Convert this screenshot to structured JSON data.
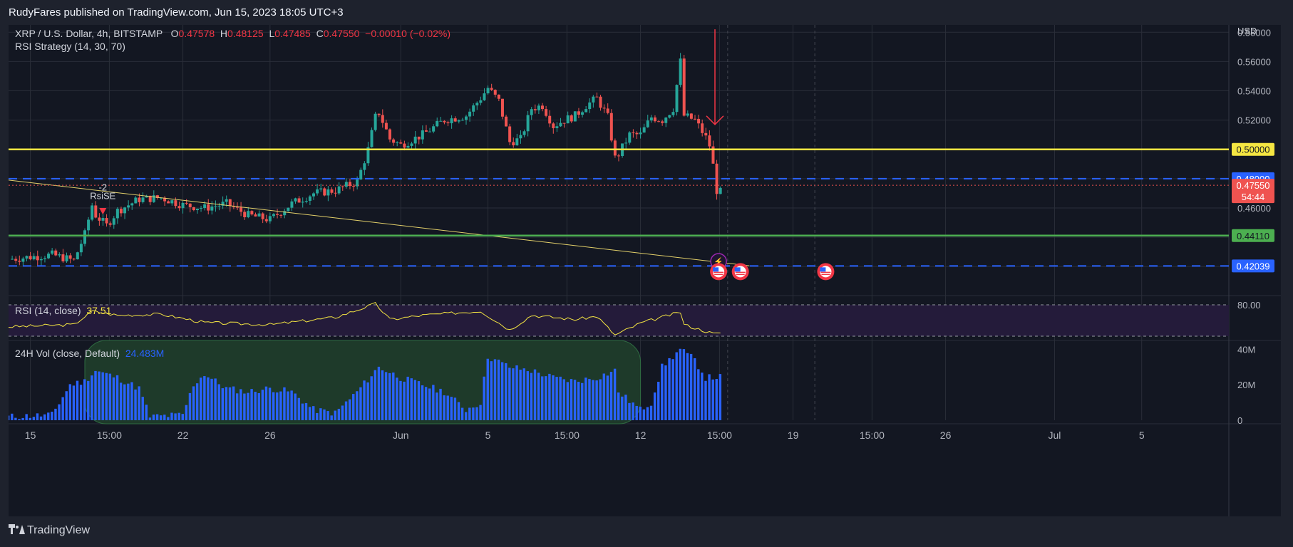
{
  "header": {
    "publisher_line": "RudyFares published on TradingView.com, Jun 15, 2023 18:05 UTC+3"
  },
  "legend": {
    "symbol": "XRP / U.S. Dollar, 4h, BITSTAMP",
    "open_label": "O",
    "open": "0.47578",
    "high_label": "H",
    "high": "0.48125",
    "low_label": "L",
    "low": "0.47485",
    "close_label": "C",
    "close": "0.47550",
    "change": "−0.00010 (−0.02%)",
    "strategy": "RSI Strategy (14, 30, 70)",
    "rsi_title": "RSI (14, close)",
    "rsi_value": "37.51",
    "vol_title": "24H Vol (close, Default)",
    "vol_value": "24.483M"
  },
  "footer": {
    "brand": "TradingView"
  },
  "colors": {
    "background": "#131722",
    "up": "#26a69a",
    "down": "#ef5350",
    "yellow_level": "#f5e642",
    "green_level": "#4caf50",
    "blue_level": "#2962ff",
    "volume": "#2962ff",
    "rsi_line": "#f5e642"
  },
  "chart_data": [
    {
      "type": "candlestick",
      "panel": "price",
      "currency": "USD",
      "ylim": [
        0.405,
        0.585
      ],
      "price_ticks": [
        0.58,
        0.56,
        0.54,
        0.52,
        0.46
      ],
      "price_tick_labels": [
        "0.58000",
        "0.56000",
        "0.54000",
        "0.52000",
        "0.46000"
      ],
      "x_ticks": [
        {
          "date": "2023-05-15",
          "label": "15"
        },
        {
          "date": "2023-05-18 15:00",
          "label": "15:00"
        },
        {
          "date": "2023-05-22",
          "label": "22"
        },
        {
          "date": "2023-05-26",
          "label": "26"
        },
        {
          "date": "2023-06-01",
          "label": "Jun"
        },
        {
          "date": "2023-06-05",
          "label": "5"
        },
        {
          "date": "2023-06-08 15:00",
          "label": "15:00"
        },
        {
          "date": "2023-06-12",
          "label": "12"
        },
        {
          "date": "2023-06-15 15:00",
          "label": "15:00"
        },
        {
          "date": "2023-06-19",
          "label": "19"
        },
        {
          "date": "2023-06-22 15:00",
          "label": "15:00"
        },
        {
          "date": "2023-06-26",
          "label": "26"
        },
        {
          "date": "2023-07-01",
          "label": "Jul"
        },
        {
          "date": "2023-07-05",
          "label": "5"
        }
      ],
      "x_range": [
        "2023-05-14",
        "2023-07-09"
      ],
      "close_path": [
        [
          "2023-05-14",
          0.425
        ],
        [
          "2023-05-16",
          0.428
        ],
        [
          "2023-05-17",
          0.424
        ],
        [
          "2023-05-17 12:00",
          0.442
        ],
        [
          "2023-05-17 20:00",
          0.462
        ],
        [
          "2023-05-18",
          0.455
        ],
        [
          "2023-05-18 12:00",
          0.448
        ],
        [
          "2023-05-19",
          0.458
        ],
        [
          "2023-05-20",
          0.466
        ],
        [
          "2023-05-21",
          0.467
        ],
        [
          "2023-05-22",
          0.462
        ],
        [
          "2023-05-23",
          0.46
        ],
        [
          "2023-05-24",
          0.463
        ],
        [
          "2023-05-25",
          0.455
        ],
        [
          "2023-05-26",
          0.452
        ],
        [
          "2023-05-27",
          0.463
        ],
        [
          "2023-05-28",
          0.47
        ],
        [
          "2023-05-29",
          0.472
        ],
        [
          "2023-05-30",
          0.478
        ],
        [
          "2023-05-30 12:00",
          0.5
        ],
        [
          "2023-05-30 20:00",
          0.522
        ],
        [
          "2023-05-31",
          0.525
        ],
        [
          "2023-05-31 12:00",
          0.507
        ],
        [
          "2023-06-01",
          0.503
        ],
        [
          "2023-06-02",
          0.51
        ],
        [
          "2023-06-03",
          0.52
        ],
        [
          "2023-06-04",
          0.523
        ],
        [
          "2023-06-04 16:00",
          0.535
        ],
        [
          "2023-06-05",
          0.542
        ],
        [
          "2023-06-05 12:00",
          0.533
        ],
        [
          "2023-06-06",
          0.505
        ],
        [
          "2023-06-06 12:00",
          0.507
        ],
        [
          "2023-06-07",
          0.528
        ],
        [
          "2023-06-07 12:00",
          0.53
        ],
        [
          "2023-06-08",
          0.516
        ],
        [
          "2023-06-08 12:00",
          0.52
        ],
        [
          "2023-06-09",
          0.523
        ],
        [
          "2023-06-09 12:00",
          0.53
        ],
        [
          "2023-06-10",
          0.535
        ],
        [
          "2023-06-10 12:00",
          0.522
        ],
        [
          "2023-06-10 20:00",
          0.494
        ],
        [
          "2023-06-11",
          0.497
        ],
        [
          "2023-06-11 12:00",
          0.51
        ],
        [
          "2023-06-12",
          0.51
        ],
        [
          "2023-06-12 12:00",
          0.522
        ],
        [
          "2023-06-13",
          0.52
        ],
        [
          "2023-06-13 12:00",
          0.528
        ],
        [
          "2023-06-13 20:00",
          0.56
        ],
        [
          "2023-06-14",
          0.523
        ],
        [
          "2023-06-14 12:00",
          0.52
        ],
        [
          "2023-06-15",
          0.508
        ],
        [
          "2023-06-15 06:00",
          0.5
        ],
        [
          "2023-06-15 10:00",
          0.478
        ],
        [
          "2023-06-15 14:00",
          0.466
        ],
        [
          "2023-06-15 18:00",
          0.4755
        ]
      ],
      "levels": [
        {
          "value": 0.5,
          "label": "0.50000",
          "style": "solid",
          "color": "#f5e642"
        },
        {
          "value": 0.48,
          "label": "0.48000",
          "style": "dashed",
          "color": "#2962ff"
        },
        {
          "value": 0.4755,
          "label": "0.47550",
          "sublabel": "54:44",
          "style": "dotted",
          "color": "#ef5350"
        },
        {
          "value": 0.4411,
          "label": "0.44110",
          "style": "solid",
          "color": "#4caf50"
        },
        {
          "value": 0.42039,
          "label": "0.42039",
          "style": "dashed",
          "color": "#2962ff"
        }
      ],
      "trendline": {
        "start": [
          "2023-05-14",
          0.479
        ],
        "end": [
          "2023-06-17",
          0.4205
        ]
      },
      "annotations": [
        {
          "text": "-2",
          "date": "2023-05-18",
          "price": 0.472
        },
        {
          "text": "RsiSE",
          "date": "2023-05-18",
          "price": 0.466
        },
        {
          "type": "arrow-down",
          "date": "2023-06-15 10:00",
          "from": 0.582,
          "to": 0.517
        }
      ]
    },
    {
      "type": "line",
      "panel": "rsi",
      "title": "RSI (14, close)",
      "y_ticks": [
        80
      ],
      "y_tick_labels": [
        "80.00"
      ],
      "bands": [
        70,
        30
      ],
      "current": 37.51,
      "points": [
        [
          "2023-05-14",
          48
        ],
        [
          "2023-05-17",
          52
        ],
        [
          "2023-05-17 20:00",
          78
        ],
        [
          "2023-05-19",
          70
        ],
        [
          "2023-05-21",
          72
        ],
        [
          "2023-05-23",
          56
        ],
        [
          "2023-05-26",
          52
        ],
        [
          "2023-05-29",
          66
        ],
        [
          "2023-05-30 20:00",
          92
        ],
        [
          "2023-05-31 12:00",
          62
        ],
        [
          "2023-06-02",
          70
        ],
        [
          "2023-06-04 16:00",
          78
        ],
        [
          "2023-06-06",
          42
        ],
        [
          "2023-06-07",
          70
        ],
        [
          "2023-06-09",
          62
        ],
        [
          "2023-06-10",
          68
        ],
        [
          "2023-06-10 20:00",
          32
        ],
        [
          "2023-06-12",
          55
        ],
        [
          "2023-06-13 20:00",
          76
        ],
        [
          "2023-06-14",
          52
        ],
        [
          "2023-06-15 10:00",
          34
        ],
        [
          "2023-06-15 18:00",
          37.51
        ]
      ]
    },
    {
      "type": "bar",
      "panel": "volume",
      "title": "24H Vol (close, Default)",
      "y_ticks": [
        0,
        20,
        40
      ],
      "y_tick_labels": [
        "0",
        "20M",
        "40M"
      ],
      "current": "24.483M",
      "unit": "M",
      "profile": [
        [
          "2023-05-14",
          2
        ],
        [
          "2023-05-16",
          3
        ],
        [
          "2023-05-16 20:00",
          20
        ],
        [
          "2023-05-17 12:00",
          22
        ],
        [
          "2023-05-18",
          28
        ],
        [
          "2023-05-19",
          24
        ],
        [
          "2023-05-20",
          18
        ],
        [
          "2023-05-20 12:00",
          2
        ],
        [
          "2023-05-22",
          3
        ],
        [
          "2023-05-22 12:00",
          20
        ],
        [
          "2023-05-23",
          26
        ],
        [
          "2023-05-24",
          18
        ],
        [
          "2023-05-25",
          16
        ],
        [
          "2023-05-26",
          18
        ],
        [
          "2023-05-27",
          16
        ],
        [
          "2023-05-28",
          6
        ],
        [
          "2023-05-29",
          4
        ],
        [
          "2023-05-30",
          16
        ],
        [
          "2023-05-31",
          30
        ],
        [
          "2023-06-01",
          24
        ],
        [
          "2023-06-02",
          20
        ],
        [
          "2023-06-03",
          16
        ],
        [
          "2023-06-04",
          6
        ],
        [
          "2023-06-04 16:00",
          10
        ],
        [
          "2023-06-05",
          36
        ],
        [
          "2023-06-06",
          30
        ],
        [
          "2023-06-07",
          28
        ],
        [
          "2023-06-08",
          24
        ],
        [
          "2023-06-09",
          22
        ],
        [
          "2023-06-10",
          24
        ],
        [
          "2023-06-10 20:00",
          28
        ],
        [
          "2023-06-11",
          16
        ],
        [
          "2023-06-12",
          6
        ],
        [
          "2023-06-12 12:00",
          10
        ],
        [
          "2023-06-13",
          30
        ],
        [
          "2023-06-13 20:00",
          40
        ],
        [
          "2023-06-14 12:00",
          34
        ],
        [
          "2023-06-15",
          24
        ],
        [
          "2023-06-15 18:00",
          24.483
        ]
      ]
    }
  ]
}
